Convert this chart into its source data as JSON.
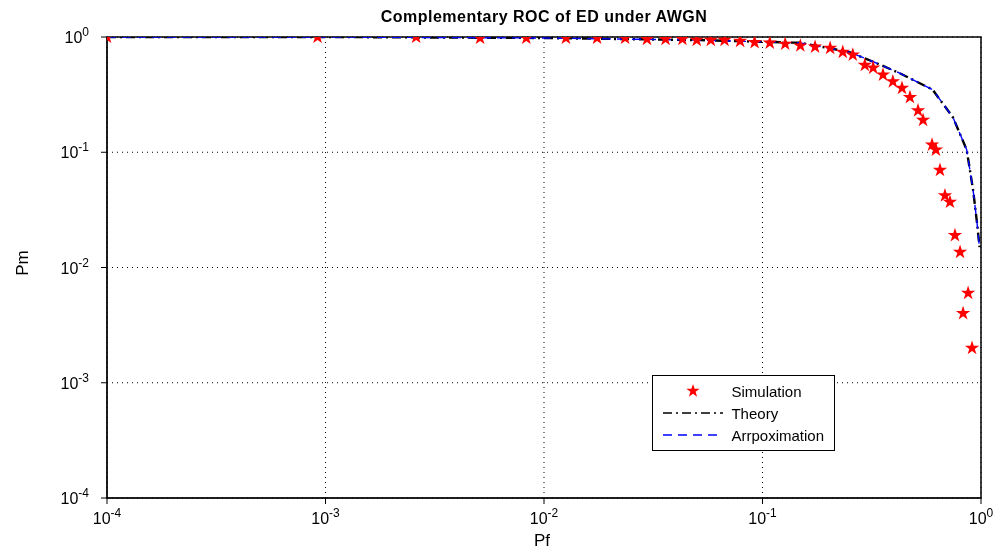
{
  "chart_data": {
    "type": "line",
    "title": "Complementary ROC of ED under AWGN",
    "xlabel": "Pf",
    "ylabel": "Pm",
    "log": "xy",
    "grid": true,
    "legend": "bottom right",
    "xlim": [
      0.0001,
      1
    ],
    "ylim": [
      0.0001,
      1
    ],
    "xticks": [
      {
        "value": 0.0001,
        "label": "10$^{-4}$"
      },
      {
        "value": 0.001,
        "label": "10$^{-3}$"
      },
      {
        "value": 0.01,
        "label": "10$^{-2}$"
      },
      {
        "value": 0.1,
        "label": "10$^{-1}$"
      },
      {
        "value": 1,
        "label": "10$^{0}$"
      }
    ],
    "yticks": [
      {
        "value": 0.0001,
        "label": "10$^{-4}$"
      },
      {
        "value": 0.001,
        "label": "10$^{-3}$"
      },
      {
        "value": 0.01,
        "label": "10$^{-2}$"
      },
      {
        "value": 0.1,
        "label": "10$^{-1}$"
      },
      {
        "value": 1,
        "label": "10$^{0}$"
      }
    ],
    "series": [
      {
        "name": "Simulation",
        "type": "scatter",
        "color": "#ff0000",
        "marker": "star",
        "x": [
          0.0001,
          0.00092,
          0.0026,
          0.0051,
          0.0083,
          0.0126,
          0.0175,
          0.0235,
          0.0296,
          0.036,
          0.043,
          0.05,
          0.058,
          0.067,
          0.079,
          0.092,
          0.108,
          0.127,
          0.149,
          0.174,
          0.204,
          0.233,
          0.259,
          0.294,
          0.321,
          0.356,
          0.395,
          0.435,
          0.473,
          0.515,
          0.543,
          0.597,
          0.622,
          0.649,
          0.684,
          0.721,
          0.76,
          0.802,
          0.873,
          0.828,
          0.91
        ],
        "values": [
          1,
          1,
          1,
          0.98,
          0.98,
          0.98,
          0.98,
          0.98,
          0.96,
          0.96,
          0.96,
          0.94,
          0.94,
          0.94,
          0.92,
          0.9,
          0.89,
          0.87,
          0.84,
          0.82,
          0.8,
          0.74,
          0.7,
          0.57,
          0.54,
          0.47,
          0.41,
          0.36,
          0.3,
          0.23,
          0.19,
          0.116,
          0.105,
          0.07,
          0.042,
          0.037,
          0.019,
          0.0136,
          0.006,
          0.004,
          0.002
        ]
      },
      {
        "name": "Theory",
        "color": "#000000",
        "marker": "none",
        "line_style": "dashdot",
        "x": [
          0.0001,
          0.001,
          0.01,
          0.052,
          0.149,
          0.25,
          0.321,
          0.42,
          0.6,
          0.745,
          0.86,
          0.92,
          0.96,
          0.985
        ],
        "values": [
          1,
          1,
          0.98,
          0.94,
          0.89,
          0.74,
          0.61,
          0.49,
          0.35,
          0.2,
          0.105,
          0.047,
          0.024,
          0.015
        ]
      },
      {
        "name": "Arrpoximation",
        "color": "#0000ff",
        "marker": "none",
        "line_style": "dashed",
        "x": [
          0.0001,
          0.001,
          0.01,
          0.052,
          0.149,
          0.25,
          0.321,
          0.42,
          0.6,
          0.745,
          0.86,
          0.92,
          0.96,
          0.98
        ],
        "values": [
          1,
          1,
          0.98,
          0.94,
          0.89,
          0.74,
          0.61,
          0.49,
          0.35,
          0.2,
          0.105,
          0.047,
          0.024,
          0.016
        ]
      }
    ]
  }
}
